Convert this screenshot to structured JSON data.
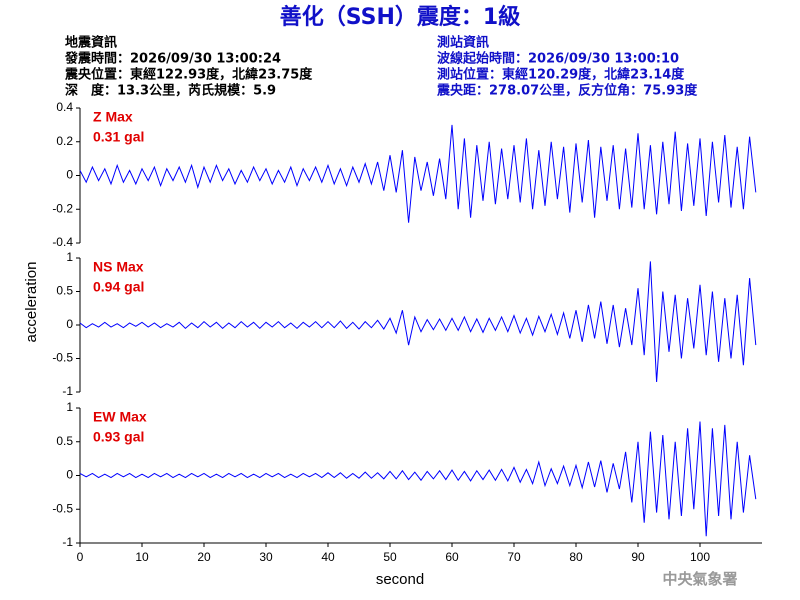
{
  "chart_data": {
    "type": "line",
    "title": "善化（SSH）震度：1級",
    "info_left": [
      "地震資訊",
      "發震時間：2026/09/30 13:00:24",
      "震央位置：東經122.93度，北緯23.75度",
      "深　度：13.3公里，芮氏規模：5.9"
    ],
    "info_right": [
      "測站資訊",
      "波線起始時間：2026/09/30 13:00:10",
      "測站位置：東經120.29度，北緯23.14度",
      "震央距：278.07公里，反方位角：75.93度"
    ],
    "xlabel": "second",
    "ylabel": "acceleration",
    "footer": "中央氣象署",
    "xlim": [
      0,
      110
    ],
    "xticks": [
      0,
      10,
      20,
      30,
      40,
      50,
      60,
      70,
      80,
      90,
      100
    ],
    "x": [
      0,
      1,
      2,
      3,
      4,
      5,
      6,
      7,
      8,
      9,
      10,
      11,
      12,
      13,
      14,
      15,
      16,
      17,
      18,
      19,
      20,
      21,
      22,
      23,
      24,
      25,
      26,
      27,
      28,
      29,
      30,
      31,
      32,
      33,
      34,
      35,
      36,
      37,
      38,
      39,
      40,
      41,
      42,
      43,
      44,
      45,
      46,
      47,
      48,
      49,
      50,
      51,
      52,
      53,
      54,
      55,
      56,
      57,
      58,
      59,
      60,
      61,
      62,
      63,
      64,
      65,
      66,
      67,
      68,
      69,
      70,
      71,
      72,
      73,
      74,
      75,
      76,
      77,
      78,
      79,
      80,
      81,
      82,
      83,
      84,
      85,
      86,
      87,
      88,
      89,
      90,
      91,
      92,
      93,
      94,
      95,
      96,
      97,
      98,
      99,
      100,
      101,
      102,
      103,
      104,
      105,
      106,
      107,
      108,
      109
    ],
    "panels": [
      {
        "annotation": [
          "Z Max",
          "0.31 gal"
        ],
        "ylim": [
          -0.4,
          0.4
        ],
        "yticks": [
          -0.4,
          -0.2,
          0,
          0.2,
          0.4
        ],
        "series": [
          {
            "color": "#0000ff",
            "values": [
              0.03,
              -0.04,
              0.05,
              -0.03,
              0.04,
              -0.05,
              0.06,
              -0.04,
              0.03,
              -0.05,
              0.04,
              -0.03,
              0.05,
              -0.06,
              0.04,
              -0.03,
              0.05,
              -0.04,
              0.06,
              -0.07,
              0.05,
              -0.04,
              0.06,
              -0.03,
              0.04,
              -0.05,
              0.03,
              -0.04,
              0.05,
              -0.03,
              0.04,
              -0.05,
              0.03,
              -0.04,
              0.05,
              -0.06,
              0.04,
              -0.03,
              0.05,
              -0.04,
              0.06,
              -0.05,
              0.04,
              -0.06,
              0.05,
              -0.04,
              0.07,
              -0.05,
              0.08,
              -0.09,
              0.12,
              -0.1,
              0.15,
              -0.28,
              0.11,
              -0.09,
              0.08,
              -0.12,
              0.1,
              -0.14,
              0.3,
              -0.2,
              0.22,
              -0.25,
              0.18,
              -0.15,
              0.2,
              -0.17,
              0.16,
              -0.14,
              0.18,
              -0.16,
              0.22,
              -0.2,
              0.15,
              -0.18,
              0.2,
              -0.14,
              0.17,
              -0.22,
              0.19,
              -0.16,
              0.21,
              -0.25,
              0.17,
              -0.15,
              0.18,
              -0.2,
              0.16,
              -0.19,
              0.25,
              -0.2,
              0.18,
              -0.23,
              0.2,
              -0.17,
              0.26,
              -0.21,
              0.19,
              -0.18,
              0.22,
              -0.24,
              0.2,
              -0.16,
              0.24,
              -0.19,
              0.17,
              -0.2,
              0.23,
              -0.1
            ]
          }
        ]
      },
      {
        "annotation": [
          "NS Max",
          "0.94 gal"
        ],
        "ylim": [
          -1,
          1
        ],
        "yticks": [
          -1,
          -0.5,
          0,
          0.5,
          1
        ],
        "series": [
          {
            "color": "#0000ff",
            "values": [
              0.03,
              -0.04,
              0.02,
              -0.03,
              0.04,
              -0.03,
              0.02,
              -0.04,
              0.03,
              -0.02,
              0.04,
              -0.03,
              0.03,
              -0.04,
              0.02,
              -0.03,
              0.04,
              -0.05,
              0.03,
              -0.04,
              0.05,
              -0.03,
              0.04,
              -0.05,
              0.03,
              -0.04,
              0.05,
              -0.03,
              0.04,
              -0.05,
              0.04,
              -0.03,
              0.05,
              -0.04,
              0.03,
              -0.05,
              0.04,
              -0.03,
              0.05,
              -0.04,
              0.05,
              -0.04,
              0.06,
              -0.05,
              0.04,
              -0.06,
              0.05,
              -0.04,
              0.07,
              -0.06,
              0.1,
              -0.12,
              0.22,
              -0.3,
              0.12,
              -0.1,
              0.08,
              -0.07,
              0.09,
              -0.08,
              0.1,
              -0.08,
              0.12,
              -0.1,
              0.09,
              -0.11,
              0.1,
              -0.08,
              0.12,
              -0.1,
              0.14,
              -0.12,
              0.1,
              -0.15,
              0.13,
              -0.1,
              0.16,
              -0.14,
              0.18,
              -0.2,
              0.22,
              -0.25,
              0.3,
              -0.2,
              0.35,
              -0.28,
              0.3,
              -0.33,
              0.25,
              -0.3,
              0.55,
              -0.45,
              0.95,
              -0.85,
              0.5,
              -0.4,
              0.45,
              -0.5,
              0.4,
              -0.35,
              0.6,
              -0.45,
              0.5,
              -0.55,
              0.4,
              -0.5,
              0.45,
              -0.6,
              0.7,
              -0.3
            ]
          }
        ]
      },
      {
        "annotation": [
          "EW Max",
          "0.93 gal"
        ],
        "ylim": [
          -1,
          1
        ],
        "yticks": [
          -1,
          -0.5,
          0,
          0.5,
          1
        ],
        "series": [
          {
            "color": "#0000ff",
            "values": [
              0.03,
              -0.02,
              0.03,
              -0.03,
              0.02,
              -0.03,
              0.03,
              -0.02,
              0.03,
              -0.03,
              0.02,
              -0.03,
              0.03,
              -0.02,
              0.03,
              -0.03,
              0.02,
              -0.03,
              0.03,
              -0.02,
              0.03,
              -0.03,
              0.02,
              -0.03,
              0.03,
              -0.02,
              0.03,
              -0.03,
              0.02,
              -0.03,
              0.03,
              -0.02,
              0.03,
              -0.03,
              0.02,
              -0.03,
              0.03,
              -0.02,
              0.03,
              -0.03,
              0.04,
              -0.03,
              0.04,
              -0.04,
              0.03,
              -0.04,
              0.05,
              -0.04,
              0.04,
              -0.05,
              0.06,
              -0.05,
              0.07,
              -0.06,
              0.05,
              -0.07,
              0.06,
              -0.05,
              0.07,
              -0.06,
              0.08,
              -0.07,
              0.06,
              -0.08,
              0.07,
              -0.06,
              0.08,
              -0.07,
              0.09,
              -0.08,
              0.12,
              -0.1,
              0.09,
              -0.12,
              0.2,
              -0.15,
              0.1,
              -0.12,
              0.14,
              -0.15,
              0.15,
              -0.18,
              0.2,
              -0.17,
              0.22,
              -0.25,
              0.18,
              -0.2,
              0.35,
              -0.4,
              0.5,
              -0.7,
              0.65,
              -0.55,
              0.6,
              -0.65,
              0.5,
              -0.6,
              0.7,
              -0.5,
              0.8,
              -0.9,
              0.7,
              -0.6,
              0.75,
              -0.65,
              0.5,
              -0.55,
              0.3,
              -0.35
            ]
          }
        ]
      }
    ]
  }
}
